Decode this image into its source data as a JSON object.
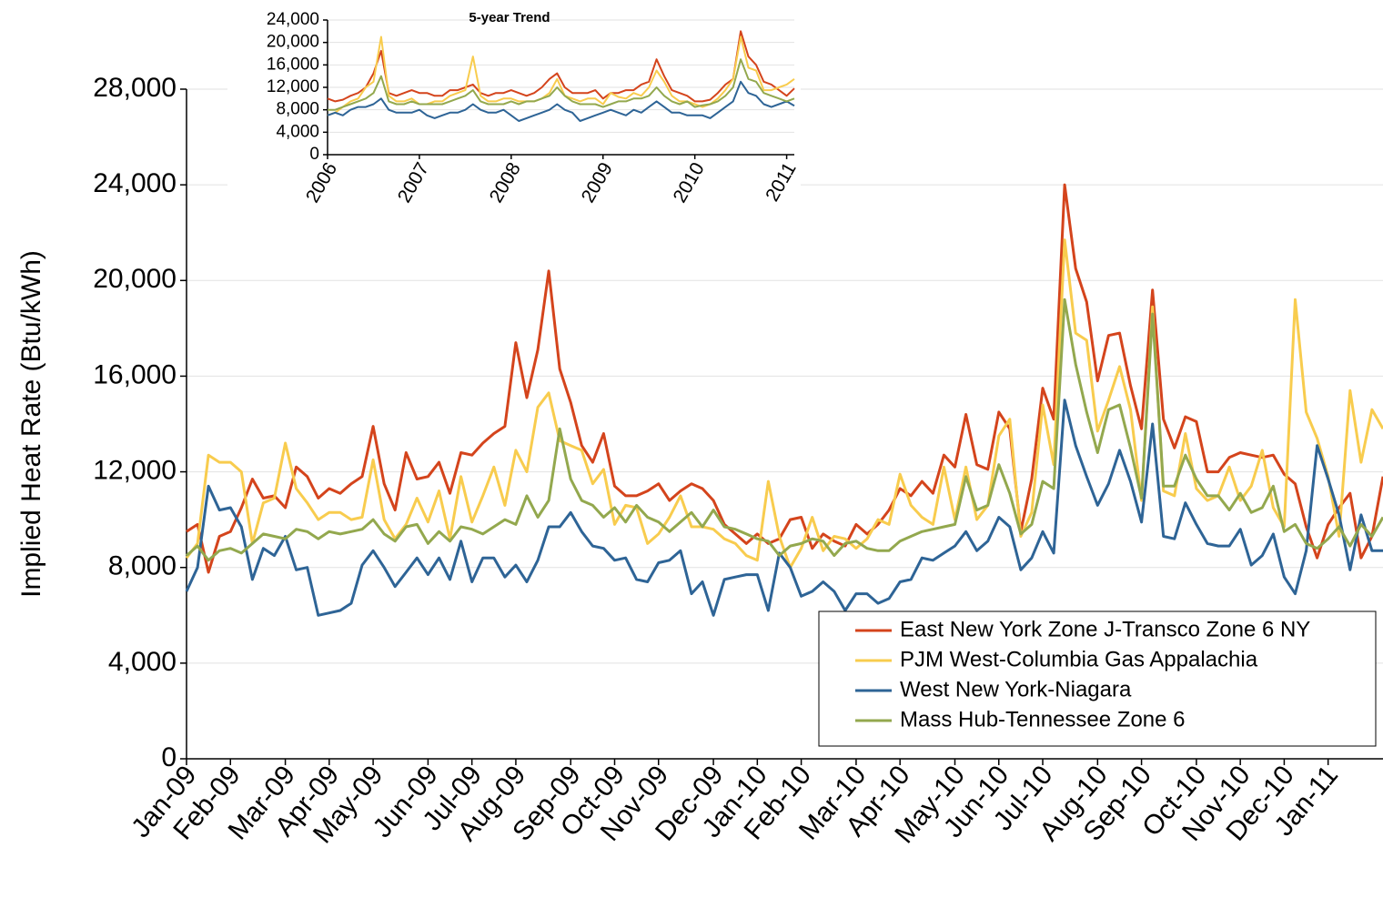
{
  "chart_data": [
    {
      "type": "line",
      "y_label": "Implied Heat Rate (Btu/kWh)",
      "categories": [
        "Jan-09",
        null,
        null,
        null,
        "Feb-09",
        null,
        null,
        null,
        null,
        "Mar-09",
        null,
        null,
        null,
        "Apr-09",
        null,
        null,
        null,
        "May-09",
        null,
        null,
        null,
        null,
        "Jun-09",
        null,
        null,
        null,
        "Jul-09",
        null,
        null,
        null,
        "Aug-09",
        null,
        null,
        null,
        null,
        "Sep-09",
        null,
        null,
        null,
        "Oct-09",
        null,
        null,
        null,
        "Nov-09",
        null,
        null,
        null,
        null,
        "Dec-09",
        null,
        null,
        null,
        "Jan-10",
        null,
        null,
        null,
        "Feb-10",
        null,
        null,
        null,
        null,
        "Mar-10",
        null,
        null,
        null,
        "Apr-10",
        null,
        null,
        null,
        null,
        "May-10",
        null,
        null,
        null,
        "Jun-10",
        null,
        null,
        null,
        "Jul-10",
        null,
        null,
        null,
        null,
        "Aug-10",
        null,
        null,
        null,
        "Sep-10",
        null,
        null,
        null,
        null,
        "Oct-10",
        null,
        null,
        null,
        "Nov-10",
        null,
        null,
        null,
        "Dec-10",
        null,
        null,
        null,
        "Jan-11",
        null,
        null,
        null,
        null,
        null
      ],
      "series": [
        {
          "name": "East New York Zone J-Transco Zone 6 NY",
          "color": "#d4441c",
          "values": [
            9500,
            9800,
            7800,
            9300,
            9500,
            10500,
            11700,
            10900,
            11000,
            10500,
            12200,
            11800,
            10900,
            11300,
            11100,
            11500,
            11800,
            13900,
            11500,
            10400,
            12800,
            11700,
            11800,
            12400,
            11100,
            12800,
            12700,
            13200,
            13600,
            13900,
            17400,
            15100,
            17100,
            20400,
            16300,
            14900,
            13100,
            12400,
            13600,
            11400,
            11000,
            11000,
            11200,
            11500,
            10800,
            11200,
            11500,
            11300,
            10800,
            9800,
            9400,
            9000,
            9400,
            9000,
            9200,
            10000,
            10100,
            8800,
            9400,
            9100,
            8900,
            9800,
            9400,
            9800,
            10400,
            11300,
            11000,
            11600,
            11100,
            12700,
            12200,
            14400,
            12300,
            12100,
            14500,
            13800,
            9500,
            11700,
            15500,
            14200,
            24000,
            20500,
            19100,
            15800,
            17700,
            17800,
            15600,
            13800,
            19600,
            14200,
            13000,
            14300,
            14100,
            12000,
            12000,
            12600,
            12800,
            12700,
            12600,
            12700,
            11900,
            11500,
            9700,
            8400,
            9800,
            10500,
            11100,
            8400,
            9300,
            11800
          ]
        },
        {
          "name": "PJM West-Columbia Gas Appalachia",
          "color": "#f8cc4e",
          "values": [
            8400,
            9000,
            12700,
            12400,
            12400,
            12000,
            9000,
            10700,
            10900,
            13200,
            11300,
            10700,
            10000,
            10300,
            10300,
            10000,
            10100,
            12500,
            10000,
            9200,
            9800,
            10900,
            9900,
            11200,
            9200,
            11800,
            9900,
            11000,
            12200,
            10600,
            12900,
            12000,
            14700,
            15300,
            13300,
            13100,
            12900,
            11500,
            12100,
            9800,
            10600,
            10500,
            9000,
            9400,
            10100,
            11000,
            9700,
            9700,
            9600,
            9200,
            9000,
            8500,
            8300,
            11600,
            9300,
            8000,
            8800,
            10100,
            8700,
            9300,
            9200,
            8800,
            9200,
            10000,
            9800,
            11900,
            10600,
            10100,
            9800,
            12200,
            10000,
            12200,
            10000,
            10600,
            13500,
            14200,
            9300,
            10300,
            14800,
            12300,
            21700,
            17800,
            17500,
            13700,
            15000,
            16400,
            14600,
            10800,
            18900,
            11200,
            11000,
            13600,
            11300,
            10800,
            11000,
            12200,
            10800,
            11400,
            12900,
            10500,
            9700,
            19200,
            14500,
            13400,
            11800,
            9300,
            15400,
            12400,
            14600,
            13800
          ]
        },
        {
          "name": "West New York-Niagara",
          "color": "#2e6496",
          "values": [
            7000,
            8000,
            11400,
            10400,
            10500,
            9700,
            7500,
            8800,
            8500,
            9300,
            7900,
            8000,
            6000,
            6100,
            6200,
            6500,
            8100,
            8700,
            8000,
            7200,
            7800,
            8400,
            7700,
            8400,
            7500,
            9100,
            7400,
            8400,
            8400,
            7600,
            8100,
            7400,
            8300,
            9700,
            9700,
            10300,
            9500,
            8900,
            8800,
            8300,
            8400,
            7500,
            7400,
            8200,
            8300,
            8700,
            6900,
            7400,
            6000,
            7500,
            7600,
            7700,
            7700,
            6200,
            8600,
            8000,
            6800,
            7000,
            7400,
            7000,
            6200,
            6900,
            6900,
            6500,
            6700,
            7400,
            7500,
            8400,
            8300,
            8600,
            8900,
            9500,
            8700,
            9100,
            10100,
            9700,
            7900,
            8400,
            9500,
            8600,
            15000,
            13100,
            11800,
            10600,
            11500,
            12900,
            11600,
            9900,
            14000,
            9300,
            9200,
            10700,
            9800,
            9000,
            8900,
            8900,
            9600,
            8100,
            8500,
            9400,
            7600,
            6900,
            8700,
            13100,
            11700,
            10200,
            7900,
            10200,
            8700,
            8700
          ]
        },
        {
          "name": "Mass Hub-Tennessee Zone 6",
          "color": "#93a84e",
          "values": [
            8500,
            8900,
            8300,
            8700,
            8800,
            8600,
            9000,
            9400,
            9300,
            9200,
            9600,
            9500,
            9200,
            9500,
            9400,
            9500,
            9600,
            10000,
            9400,
            9100,
            9700,
            9800,
            9000,
            9500,
            9100,
            9700,
            9600,
            9400,
            9700,
            10000,
            9800,
            11000,
            10100,
            10800,
            13800,
            11700,
            10800,
            10600,
            10100,
            10500,
            9900,
            10600,
            10100,
            9900,
            9500,
            9900,
            10300,
            9700,
            10400,
            9700,
            9600,
            9400,
            9200,
            9100,
            8500,
            8900,
            9000,
            9200,
            9100,
            8500,
            9000,
            9100,
            8800,
            8700,
            8700,
            9100,
            9300,
            9500,
            9600,
            9700,
            9800,
            11800,
            10400,
            10600,
            12300,
            11100,
            9400,
            9800,
            11600,
            11300,
            19200,
            16500,
            14500,
            12800,
            14600,
            14800,
            13000,
            10900,
            18600,
            11400,
            11400,
            12700,
            11700,
            11000,
            11000,
            10400,
            11100,
            10300,
            10500,
            11400,
            9500,
            9800,
            9000,
            8800,
            9200,
            9700,
            8900,
            9800,
            9300,
            10100
          ]
        }
      ],
      "ylim": [
        0,
        28000
      ],
      "yticks": [
        0,
        {
          "value": 4000,
          "label": "4,000"
        },
        {
          "value": 8000,
          "label": "8,000"
        },
        {
          "value": 12000,
          "label": "12,000"
        },
        {
          "value": 16000,
          "label": "16,000"
        },
        {
          "value": 20000,
          "label": "20,000"
        },
        {
          "value": 24000,
          "label": "24,000"
        },
        {
          "value": 28000,
          "label": "28,000"
        }
      ],
      "grid": true,
      "legend": "lower right"
    },
    {
      "type": "line",
      "title": "5-year Trend",
      "categories": [
        "2006",
        null,
        null,
        null,
        null,
        null,
        null,
        null,
        null,
        null,
        null,
        null,
        "2007",
        null,
        null,
        null,
        null,
        null,
        null,
        null,
        null,
        null,
        null,
        null,
        "2008",
        null,
        null,
        null,
        null,
        null,
        null,
        null,
        null,
        null,
        null,
        null,
        "2009",
        null,
        null,
        null,
        null,
        null,
        null,
        null,
        null,
        null,
        null,
        null,
        "2010",
        null,
        null,
        null,
        null,
        null,
        null,
        null,
        null,
        null,
        null,
        null,
        "2011",
        null
      ],
      "series": [
        {
          "color": "#d4441c",
          "values": [
            10000,
            9500,
            9800,
            10500,
            11000,
            12000,
            14500,
            18500,
            11000,
            10500,
            11000,
            11500,
            11000,
            11000,
            10500,
            10500,
            11500,
            11500,
            12000,
            12500,
            11000,
            10500,
            11000,
            11000,
            11500,
            11000,
            10500,
            11000,
            12000,
            13500,
            14500,
            12000,
            11000,
            11000,
            11000,
            11500,
            10000,
            11000,
            11000,
            11500,
            11500,
            12500,
            13000,
            17000,
            14000,
            11500,
            11000,
            10500,
            9500,
            9500,
            9800,
            11000,
            12500,
            13500,
            22000,
            17500,
            16000,
            13000,
            12500,
            11500,
            10500,
            11800
          ]
        },
        {
          "color": "#f8cc4e",
          "values": [
            7000,
            7500,
            8500,
            9500,
            10000,
            12000,
            13000,
            21000,
            10500,
            9500,
            9500,
            10000,
            9000,
            9000,
            9500,
            9500,
            10500,
            11000,
            11500,
            17500,
            10500,
            9500,
            9500,
            10000,
            10000,
            9500,
            9500,
            9500,
            10000,
            11000,
            13500,
            10500,
            10000,
            9500,
            10000,
            10000,
            9000,
            11000,
            10300,
            10000,
            11000,
            10500,
            12000,
            15000,
            13000,
            10500,
            9500,
            9500,
            9000,
            8500,
            9000,
            10000,
            11500,
            13500,
            21000,
            15500,
            15000,
            11500,
            11500,
            12000,
            12500,
            13500
          ]
        },
        {
          "color": "#2e6496",
          "values": [
            7000,
            7500,
            7000,
            8000,
            8500,
            8500,
            9000,
            10000,
            8000,
            7500,
            7500,
            7500,
            8000,
            7000,
            6500,
            7000,
            7500,
            7500,
            8000,
            9000,
            8000,
            7500,
            7500,
            8000,
            7000,
            6000,
            6500,
            7000,
            7500,
            8000,
            9000,
            8000,
            7500,
            6000,
            6500,
            7000,
            7500,
            8000,
            7500,
            7000,
            8000,
            7500,
            8500,
            9500,
            8500,
            7500,
            7500,
            7000,
            7000,
            7000,
            6500,
            7500,
            8500,
            9500,
            13000,
            11000,
            10500,
            9000,
            8500,
            9000,
            9500,
            8700
          ]
        },
        {
          "color": "#93a84e",
          "values": [
            8000,
            8000,
            8500,
            9000,
            9500,
            10000,
            11000,
            14000,
            9500,
            9000,
            9000,
            9500,
            9000,
            9000,
            9000,
            9000,
            9500,
            10000,
            10500,
            11500,
            9500,
            9000,
            9000,
            9000,
            9500,
            9000,
            9500,
            9500,
            10000,
            10500,
            12000,
            10500,
            9500,
            9000,
            9000,
            9000,
            8500,
            9000,
            9500,
            9500,
            10000,
            10000,
            10500,
            12000,
            10500,
            9500,
            9000,
            9500,
            8500,
            8800,
            9000,
            9500,
            10500,
            12000,
            17000,
            13500,
            13000,
            11000,
            10500,
            10000,
            9500,
            10000
          ]
        }
      ],
      "ylim": [
        0,
        24000
      ],
      "yticks": [
        0,
        {
          "value": 4000,
          "label": "4,000"
        },
        {
          "value": 8000,
          "label": "8,000"
        },
        {
          "value": 12000,
          "label": "12,000"
        },
        {
          "value": 16000,
          "label": "16,000"
        },
        {
          "value": 20000,
          "label": "20,000"
        },
        {
          "value": 24000,
          "label": "24,000"
        }
      ],
      "grid": true
    }
  ]
}
